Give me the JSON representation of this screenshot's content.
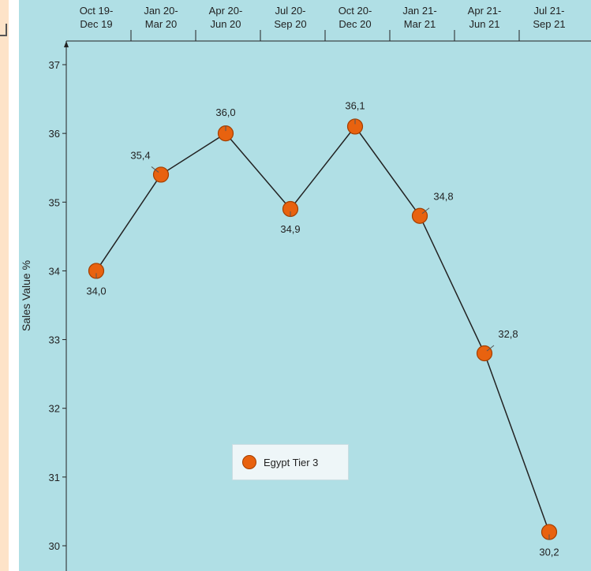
{
  "chart_data": {
    "type": "line",
    "categories": [
      [
        "Oct 19-",
        "Dec 19"
      ],
      [
        "Jan 20-",
        "Mar 20"
      ],
      [
        "Apr 20-",
        "Jun 20"
      ],
      [
        "Jul 20-",
        "Sep 20"
      ],
      [
        "Oct 20-",
        "Dec 20"
      ],
      [
        "Jan 21-",
        "Mar 21"
      ],
      [
        "Apr 21-",
        "Jun 21"
      ],
      [
        "Jul 21-",
        "Sep 21"
      ]
    ],
    "series": [
      {
        "name": "Egypt Tier 3",
        "values": [
          34.0,
          35.4,
          36.0,
          34.9,
          36.1,
          34.8,
          32.8,
          30.2
        ],
        "labels": [
          "34,0",
          "35,4",
          "36,0",
          "34,9",
          "36,1",
          "34,8",
          "32,8",
          "30,2"
        ],
        "color": "#e8620f"
      }
    ],
    "ylabel": "Sales Value %",
    "xlabel": "",
    "ylim": [
      30,
      37
    ],
    "yticks": [
      30,
      31,
      32,
      33,
      34,
      35,
      36,
      37
    ],
    "x_axis_position": "top",
    "grid": false,
    "legend_position": "bottom-center"
  },
  "colors": {
    "plot_background": "#b0dfe5",
    "line": "#222222",
    "marker_fill": "#e8620f",
    "marker_stroke": "#a33f00"
  }
}
